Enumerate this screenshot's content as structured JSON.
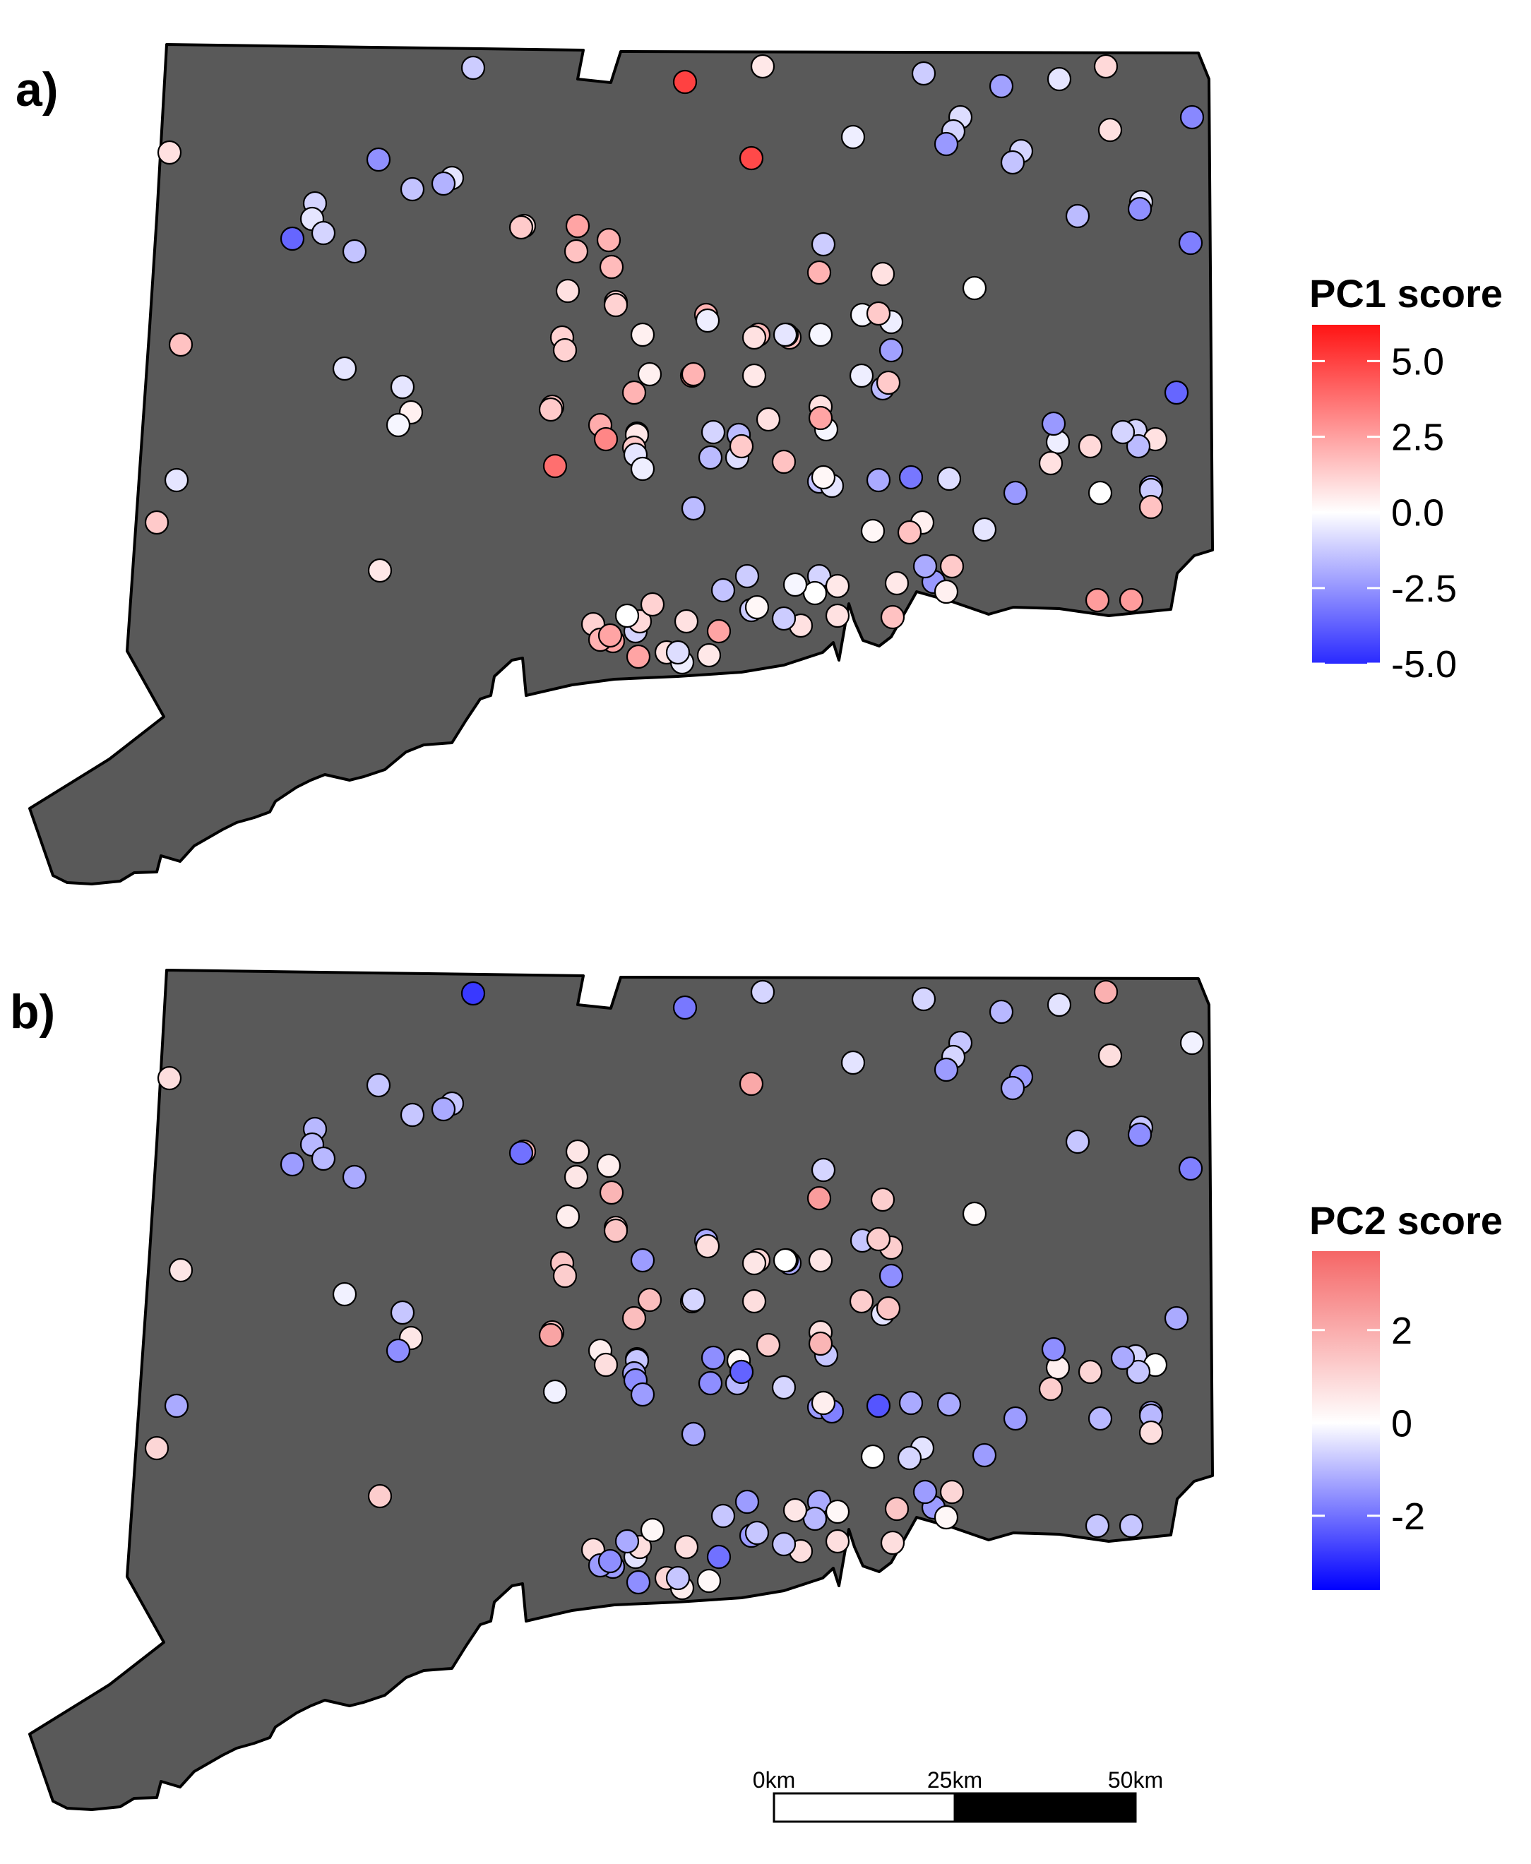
{
  "panels": [
    {
      "label": "a)",
      "legend": {
        "title": "PC1 score",
        "ticks": [
          5.0,
          2.5,
          0.0,
          -2.5,
          -5.0
        ],
        "tick_labels": [
          "5.0",
          "2.5",
          "0.0",
          "-2.5",
          "-5.0"
        ],
        "range": [
          -5.0,
          6.2
        ],
        "colors": {
          "low": "#2a2aff",
          "mid": "#ffffff",
          "high": "#ff1414"
        }
      }
    },
    {
      "label": "b)",
      "legend": {
        "title": "PC2 score",
        "ticks": [
          2,
          0,
          -2
        ],
        "tick_labels": [
          "2",
          "0",
          "-2"
        ],
        "range": [
          -3.6,
          3.7
        ],
        "colors": {
          "low": "#0000ff",
          "mid": "#ffffff",
          "high": "#f56666"
        }
      }
    }
  ],
  "scale_bar": {
    "labels": [
      "0km",
      "25km",
      "50km"
    ],
    "segments": 2
  },
  "map_points": [
    {
      "site": 1,
      "pc1": -1.2,
      "pc2": -2.8
    },
    {
      "site": 2,
      "pc1": 5.0,
      "pc2": -1.9
    },
    {
      "site": 3,
      "pc1": 0.6,
      "pc2": -0.6
    },
    {
      "site": 4,
      "pc1": -1.2,
      "pc2": -0.6
    },
    {
      "site": 5,
      "pc1": -2.2,
      "pc2": -1.0
    },
    {
      "site": 6,
      "pc1": -0.6,
      "pc2": -0.4
    },
    {
      "site": 7,
      "pc1": 1.0,
      "pc2": 1.9
    },
    {
      "site": 8,
      "pc1": -2.8,
      "pc2": -0.2
    },
    {
      "site": 9,
      "pc1": 4.8,
      "pc2": 2.1
    },
    {
      "site": 10,
      "pc1": -0.8,
      "pc2": -0.8
    },
    {
      "site": 11,
      "pc1": -1.0,
      "pc2": -0.6
    },
    {
      "site": 12,
      "pc1": -2.4,
      "pc2": -1.4
    },
    {
      "site": 13,
      "pc1": 0.8,
      "pc2": 0.8
    },
    {
      "site": 14,
      "pc1": -1.0,
      "pc2": -1.4
    },
    {
      "site": 15,
      "pc1": -1.4,
      "pc2": -1.2
    },
    {
      "site": 16,
      "pc1": 0.8,
      "pc2": 0.8
    },
    {
      "site": 17,
      "pc1": -0.4,
      "pc2": -0.4
    },
    {
      "site": 18,
      "pc1": -0.6,
      "pc2": -0.8
    },
    {
      "site": 19,
      "pc1": -3.0,
      "pc2": -1.8
    },
    {
      "site": 20,
      "pc1": -1.6,
      "pc2": -0.8
    },
    {
      "site": 21,
      "pc1": -2.6,
      "pc2": -0.8
    },
    {
      "site": 22,
      "pc1": -0.6,
      "pc2": -0.8
    },
    {
      "site": 23,
      "pc1": -1.4,
      "pc2": -0.8
    },
    {
      "site": 24,
      "pc1": -1.8,
      "pc2": -1.2
    },
    {
      "site": 25,
      "pc1": -1.0,
      "pc2": -1.0
    },
    {
      "site": 26,
      "pc1": 0.8,
      "pc2": 1.8
    },
    {
      "site": 27,
      "pc1": -0.6,
      "pc2": -1.0
    },
    {
      "site": 28,
      "pc1": -3.6,
      "pc2": -1.4
    },
    {
      "site": 29,
      "pc1": -1.0,
      "pc2": -1.0
    },
    {
      "site": 30,
      "pc1": -3.6,
      "pc2": -1.2
    },
    {
      "site": 31,
      "pc1": -2.6,
      "pc2": -1.6
    },
    {
      "site": 32,
      "pc1": -1.4,
      "pc2": -1.2
    },
    {
      "site": 33,
      "pc1": 0.0,
      "pc2": 0.1
    },
    {
      "site": 34,
      "pc1": 2.0,
      "pc2": 2.4
    },
    {
      "site": 35,
      "pc1": -1.2,
      "pc2": -0.6
    },
    {
      "site": 36,
      "pc1": -0.4,
      "pc2": 1.2
    },
    {
      "site": 37,
      "pc1": 0.8,
      "pc2": 1.2
    },
    {
      "site": 38,
      "pc1": -2.2,
      "pc2": -1.6
    },
    {
      "site": 39,
      "pc1": -1.6,
      "pc2": -0.4
    },
    {
      "site": 40,
      "pc1": -0.2,
      "pc2": -0.8
    },
    {
      "site": 41,
      "pc1": 1.4,
      "pc2": 1.4
    },
    {
      "site": 42,
      "pc1": -0.4,
      "pc2": 1.2
    },
    {
      "site": 43,
      "pc1": 1.4,
      "pc2": 1.2
    },
    {
      "site": 44,
      "pc1": 1.4,
      "pc2": -2.0
    },
    {
      "site": 45,
      "pc1": 2.4,
      "pc2": 0.6
    },
    {
      "site": 46,
      "pc1": 2.0,
      "pc2": 0.4
    },
    {
      "site": 47,
      "pc1": 1.6,
      "pc2": -1.2
    },
    {
      "site": 48,
      "pc1": 1.8,
      "pc2": 1.0
    },
    {
      "site": 49,
      "pc1": 1.6,
      "pc2": 0.6
    },
    {
      "site": 50,
      "pc1": 0.8,
      "pc2": 0.4
    },
    {
      "site": 51,
      "pc1": 1.8,
      "pc2": 1.8
    },
    {
      "site": 52,
      "pc1": -0.4,
      "pc2": -0.6
    },
    {
      "site": 53,
      "pc1": -0.2,
      "pc2": 0.6
    },
    {
      "site": 54,
      "pc1": 2.0,
      "pc2": -1.2
    },
    {
      "site": 55,
      "pc1": -0.4,
      "pc2": 0.8
    },
    {
      "site": 56,
      "pc1": 0.8,
      "pc2": 0.6
    },
    {
      "site": 57,
      "pc1": -0.6,
      "pc2": 0.0
    },
    {
      "site": 58,
      "pc1": 3.0,
      "pc2": 1.2
    },
    {
      "site": 59,
      "pc1": 1.6,
      "pc2": 1.4
    },
    {
      "site": 60,
      "pc1": 1.2,
      "pc2": 1.4
    },
    {
      "site": 61,
      "pc1": 1.2,
      "pc2": 1.2
    },
    {
      "site": 62,
      "pc1": 0.4,
      "pc2": -1.4
    },
    {
      "site": 63,
      "pc1": 1.2,
      "pc2": 1.0
    },
    {
      "site": 64,
      "pc1": 1.2,
      "pc2": 1.4
    },
    {
      "site": 65,
      "pc1": 0.4,
      "pc2": 1.6
    },
    {
      "site": 66,
      "pc1": 2.0,
      "pc2": 1.6
    },
    {
      "site": 67,
      "pc1": 2.0,
      "pc2": -0.6
    },
    {
      "site": 68,
      "pc1": 0.6,
      "pc2": 0.8
    },
    {
      "site": 69,
      "pc1": 1.4,
      "pc2": 2.2
    },
    {
      "site": 70,
      "pc1": 2.2,
      "pc2": 0.4
    },
    {
      "site": 71,
      "pc1": -1.4,
      "pc2": -0.8
    },
    {
      "site": 72,
      "pc1": -0.2,
      "pc2": -0.8
    },
    {
      "site": 73,
      "pc1": 0.8,
      "pc2": 0.8
    },
    {
      "site": 74,
      "pc1": 2.4,
      "pc2": 1.8
    },
    {
      "site": 75,
      "pc1": 1.6,
      "pc2": 0.6
    },
    {
      "site": 76,
      "pc1": -0.6,
      "pc2": -0.2
    },
    {
      "site": 77,
      "pc1": 0.4,
      "pc2": 0.6
    },
    {
      "site": 78,
      "pc1": -0.6,
      "pc2": -0.8
    },
    {
      "site": 79,
      "pc1": -0.2,
      "pc2": -1.6
    },
    {
      "site": 80,
      "pc1": 1.4,
      "pc2": 1.2
    },
    {
      "site": 81,
      "pc1": 3.2,
      "pc2": 0.8
    },
    {
      "site": 82,
      "pc1": 0.6,
      "pc2": -0.8
    },
    {
      "site": 83,
      "pc1": 1.4,
      "pc2": -1.2
    },
    {
      "site": 84,
      "pc1": -0.6,
      "pc2": -1.2
    },
    {
      "site": 85,
      "pc1": 1.4,
      "pc2": 1.0
    },
    {
      "site": 86,
      "pc1": -0.4,
      "pc2": 0.4
    },
    {
      "site": 87,
      "pc1": 3.8,
      "pc2": -0.2
    },
    {
      "site": 88,
      "pc1": -1.0,
      "pc2": -1.6
    },
    {
      "site": 89,
      "pc1": -2.8,
      "pc2": -2.8
    },
    {
      "site": 90,
      "pc1": -1.6,
      "pc2": 0.2
    },
    {
      "site": 91,
      "pc1": -1.6,
      "pc2": -1.6
    },
    {
      "site": 92,
      "pc1": -0.6,
      "pc2": -1.6
    },
    {
      "site": 93,
      "pc1": 0.8,
      "pc2": 1.2
    },
    {
      "site": 94,
      "pc1": -2.0,
      "pc2": -2.4
    },
    {
      "site": 95,
      "pc1": -1.4,
      "pc2": -1.4
    },
    {
      "site": 96,
      "pc1": -0.6,
      "pc2": -1.8
    },
    {
      "site": 97,
      "pc1": 0.6,
      "pc2": 1.2
    },
    {
      "site": 98,
      "pc1": -0.4,
      "pc2": -1.4
    },
    {
      "site": 99,
      "pc1": 0.2,
      "pc2": 0.4
    },
    {
      "site": 100,
      "pc1": 1.6,
      "pc2": -0.6
    },
    {
      "site": 101,
      "pc1": 1.2,
      "pc2": 0.4
    },
    {
      "site": 102,
      "pc1": -0.8,
      "pc2": -1.0
    },
    {
      "site": 103,
      "pc1": -2.6,
      "pc2": -3.4
    },
    {
      "site": 104,
      "pc1": -1.6,
      "pc2": -1.2
    },
    {
      "site": 105,
      "pc1": 1.4,
      "pc2": -2.2
    },
    {
      "site": 106,
      "pc1": -3.2,
      "pc2": -1.2
    },
    {
      "site": 107,
      "pc1": 1.0,
      "pc2": 1.0
    },
    {
      "site": 108,
      "pc1": -1.0,
      "pc2": -0.6
    },
    {
      "site": 109,
      "pc1": 0.8,
      "pc2": 0.0
    },
    {
      "site": 110,
      "pc1": -2.2,
      "pc2": -1.2
    },
    {
      "site": 111,
      "pc1": -1.6,
      "pc2": -0.8
    },
    {
      "site": 112,
      "pc1": -1.0,
      "pc2": -1.2
    },
    {
      "site": 113,
      "pc1": 0.0,
      "pc2": -1.0
    },
    {
      "site": 114,
      "pc1": -2.4,
      "pc2": -1.6
    },
    {
      "site": 115,
      "pc1": -2.4,
      "pc2": -1.4
    },
    {
      "site": 116,
      "pc1": 0.8,
      "pc2": 1.2
    },
    {
      "site": 117,
      "pc1": -0.6,
      "pc2": -1.4
    },
    {
      "site": 118,
      "pc1": -0.8,
      "pc2": -1.2
    },
    {
      "site": 119,
      "pc1": 0.4,
      "pc2": -0.4
    },
    {
      "site": 120,
      "pc1": -2.4,
      "pc2": -1.4
    },
    {
      "site": 121,
      "pc1": 0.4,
      "pc2": 0.2
    },
    {
      "site": 122,
      "pc1": -2.0,
      "pc2": -1.4
    },
    {
      "site": 123,
      "pc1": 1.4,
      "pc2": 1.0
    },
    {
      "site": 124,
      "pc1": -1.2,
      "pc2": -1.0
    },
    {
      "site": 125,
      "pc1": 1.6,
      "pc2": 0.8
    },
    {
      "site": 126,
      "pc1": 0.6,
      "pc2": 1.4
    },
    {
      "site": 127,
      "pc1": 1.6,
      "pc2": 0.8
    },
    {
      "site": 128,
      "pc1": 0.2,
      "pc2": 0.0
    },
    {
      "site": 129,
      "pc1": 1.6,
      "pc2": -0.6
    },
    {
      "site": 130,
      "pc1": -1.0,
      "pc2": -1.2
    },
    {
      "site": 131,
      "pc1": 0.6,
      "pc2": 0.2
    },
    {
      "site": 132,
      "pc1": 0.0,
      "pc2": -1.0
    },
    {
      "site": 133,
      "pc1": -1.4,
      "pc2": -0.8
    },
    {
      "site": 134,
      "pc1": -1.2,
      "pc2": -1.4
    },
    {
      "site": 135,
      "pc1": -0.2,
      "pc2": 0.6
    },
    {
      "site": 136,
      "pc1": 0.8,
      "pc2": 0.8
    },
    {
      "site": 137,
      "pc1": 0.8,
      "pc2": 0.8
    },
    {
      "site": 138,
      "pc1": -1.2,
      "pc2": -0.8
    },
    {
      "site": 139,
      "pc1": -1.2,
      "pc2": -1.4
    },
    {
      "site": 140,
      "pc1": 0.2,
      "pc2": -0.8
    },
    {
      "site": 141,
      "pc1": 0.8,
      "pc2": 0.8
    },
    {
      "site": 142,
      "pc1": 0.8,
      "pc2": 1.0
    },
    {
      "site": 143,
      "pc1": 2.4,
      "pc2": -2.0
    },
    {
      "site": 144,
      "pc1": 0.6,
      "pc2": 0.2
    },
    {
      "site": 145,
      "pc1": -0.4,
      "pc2": 0.4
    },
    {
      "site": 146,
      "pc1": -0.8,
      "pc2": -0.8
    },
    {
      "site": 147,
      "pc1": -1.0,
      "pc2": -0.4
    },
    {
      "site": 148,
      "pc1": 1.0,
      "pc2": 0.8
    },
    {
      "site": 149,
      "pc1": 2.4,
      "pc2": -1.4
    },
    {
      "site": 150,
      "pc1": 1.2,
      "pc2": 0.2
    },
    {
      "site": 151,
      "pc1": 1.2,
      "pc2": 0.8
    },
    {
      "site": 152,
      "pc1": 0.0,
      "pc2": -1.2
    },
    {
      "site": 153,
      "pc1": 2.0,
      "pc2": -1.4
    },
    {
      "site": 154,
      "pc1": 2.4,
      "pc2": -1.6
    },
    {
      "site": 155,
      "pc1": 2.4,
      "pc2": -1.6
    },
    {
      "site": 156,
      "pc1": 2.6,
      "pc2": -0.8
    },
    {
      "site": 157,
      "pc1": 2.6,
      "pc2": -0.8
    }
  ]
}
